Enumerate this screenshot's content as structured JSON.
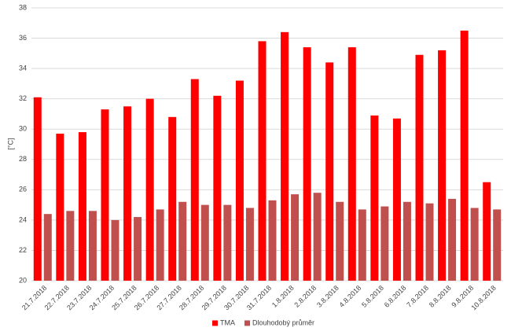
{
  "chart_data": {
    "type": "bar",
    "y_label": "[°C]",
    "categories": [
      "21.7.2018",
      "22.7.2018",
      "23.7.2018",
      "24.7.2018",
      "25.7.2018",
      "26.7.2018",
      "27.7.2018",
      "28.7.2018",
      "29.7.2018",
      "30.7.2018",
      "31.7.2018",
      "1.8.2018",
      "2.8.2018",
      "3.8.2018",
      "4.8.2018",
      "5.8.2018",
      "6.8.2018",
      "7.8.2018",
      "8.8.2018",
      "9.8.2018",
      "10.8.2018"
    ],
    "series": [
      {
        "name": "TMA",
        "color": "#ff0000",
        "values": [
          32.1,
          29.7,
          29.8,
          31.3,
          31.5,
          32.0,
          30.8,
          33.3,
          32.2,
          33.2,
          35.8,
          36.4,
          35.4,
          34.4,
          35.4,
          30.9,
          30.7,
          34.9,
          35.2,
          36.5,
          26.5
        ]
      },
      {
        "name": "Dlouhodobý průměr",
        "color": "#c0504d",
        "values": [
          24.4,
          24.6,
          24.6,
          24.0,
          24.2,
          24.7,
          25.2,
          25.0,
          25.0,
          24.8,
          25.3,
          25.7,
          25.8,
          25.2,
          24.7,
          24.9,
          25.2,
          25.1,
          25.4,
          24.8,
          24.7
        ]
      }
    ],
    "ylim": [
      20,
      38
    ],
    "yticks": [
      20,
      22,
      24,
      26,
      28,
      30,
      32,
      34,
      36,
      38
    ],
    "grid": true,
    "legend": "bottom"
  }
}
